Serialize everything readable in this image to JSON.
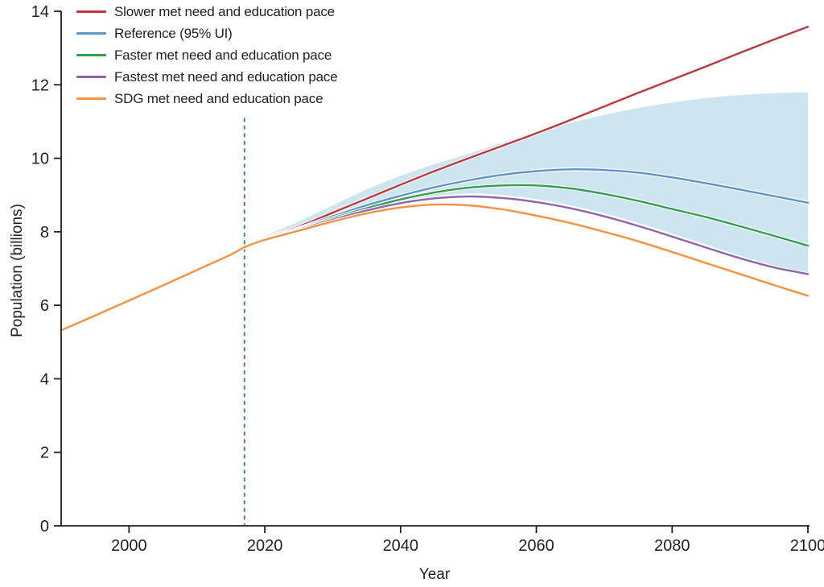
{
  "chart_data": {
    "type": "line",
    "title": "",
    "xlabel": "Year",
    "ylabel": "Population (billions)",
    "xlim": [
      1990,
      2100
    ],
    "ylim": [
      0,
      14
    ],
    "x_ticks": [
      2000,
      2020,
      2040,
      2060,
      2080,
      2100
    ],
    "y_ticks": [
      0,
      2,
      4,
      6,
      8,
      10,
      12,
      14
    ],
    "grid": false,
    "legend_position": "top-left",
    "axis_color": "#231f20",
    "years": [
      1990,
      1995,
      2000,
      2005,
      2010,
      2015,
      2017,
      2020,
      2025,
      2030,
      2035,
      2040,
      2045,
      2050,
      2055,
      2060,
      2065,
      2070,
      2075,
      2080,
      2085,
      2090,
      2095,
      2100
    ],
    "series": [
      {
        "name": "Slower met need and education pace",
        "color": "#c0373c",
        "values": [
          5.32,
          5.72,
          6.13,
          6.54,
          6.96,
          7.38,
          7.58,
          7.82,
          8.14,
          8.52,
          8.9,
          9.28,
          9.65,
          10.0,
          10.34,
          10.68,
          11.04,
          11.41,
          11.78,
          12.14,
          12.5,
          12.87,
          13.23,
          13.58
        ]
      },
      {
        "name": "Reference (95% UI)",
        "color": "#5e92c8",
        "values": [
          5.32,
          5.72,
          6.13,
          6.54,
          6.96,
          7.38,
          7.58,
          7.8,
          8.1,
          8.42,
          8.72,
          8.98,
          9.21,
          9.4,
          9.55,
          9.65,
          9.7,
          9.68,
          9.61,
          9.48,
          9.32,
          9.15,
          8.97,
          8.79
        ]
      },
      {
        "name": "Faster met need and education pace",
        "color": "#2f9e4f",
        "values": [
          5.32,
          5.72,
          6.13,
          6.54,
          6.96,
          7.38,
          7.58,
          7.8,
          8.08,
          8.37,
          8.64,
          8.88,
          9.07,
          9.2,
          9.26,
          9.26,
          9.18,
          9.03,
          8.84,
          8.62,
          8.4,
          8.15,
          7.89,
          7.62
        ]
      },
      {
        "name": "Fastest met need and education pace",
        "color": "#9165ad",
        "values": [
          5.32,
          5.72,
          6.13,
          6.54,
          6.96,
          7.38,
          7.58,
          7.79,
          8.06,
          8.33,
          8.58,
          8.78,
          8.91,
          8.96,
          8.92,
          8.81,
          8.64,
          8.42,
          8.16,
          7.87,
          7.57,
          7.28,
          7.03,
          6.85
        ]
      },
      {
        "name": "SDG met need and education pace",
        "color": "#f6913d",
        "values": [
          5.32,
          5.72,
          6.13,
          6.54,
          6.96,
          7.38,
          7.58,
          7.78,
          8.03,
          8.28,
          8.5,
          8.66,
          8.74,
          8.72,
          8.61,
          8.44,
          8.24,
          8.0,
          7.74,
          7.45,
          7.15,
          6.85,
          6.55,
          6.26
        ]
      }
    ],
    "uncertainty_band": {
      "series": "Reference (95% UI)",
      "color": "#cde5ee",
      "years": [
        2017,
        2020,
        2025,
        2030,
        2035,
        2040,
        2045,
        2050,
        2055,
        2060,
        2065,
        2070,
        2075,
        2080,
        2085,
        2090,
        2095,
        2100
      ],
      "upper": [
        7.58,
        7.88,
        8.28,
        8.72,
        9.15,
        9.52,
        9.84,
        10.12,
        10.42,
        10.7,
        10.96,
        11.18,
        11.37,
        11.52,
        11.64,
        11.72,
        11.77,
        11.8
      ],
      "lower": [
        7.58,
        7.76,
        8.0,
        8.28,
        8.55,
        8.82,
        8.97,
        9.04,
        9.0,
        8.89,
        8.72,
        8.5,
        8.24,
        7.95,
        7.65,
        7.35,
        7.08,
        6.83
      ]
    },
    "divider_line": {
      "year": 2017,
      "style": "dashed",
      "color": "#517f8d",
      "top_value": 11.1
    }
  }
}
